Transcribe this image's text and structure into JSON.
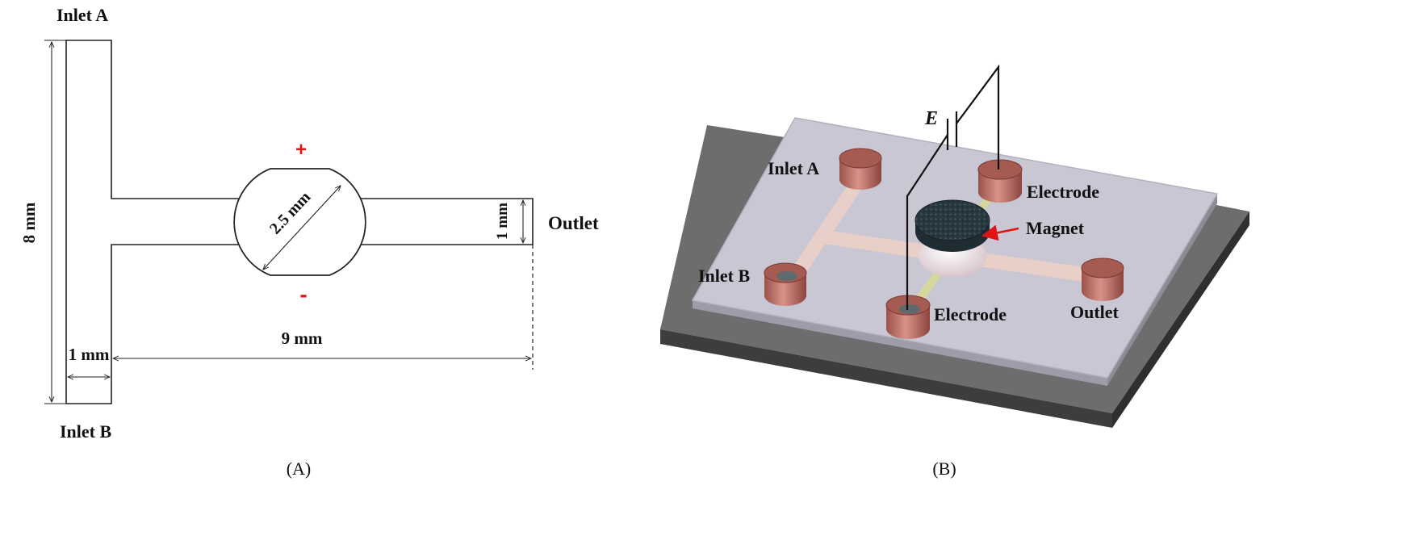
{
  "panel_a": {
    "inlet_a": "Inlet A",
    "inlet_b": "Inlet B",
    "outlet": "Outlet",
    "dim_height": "8 mm",
    "dim_width_inlet": "1 mm",
    "dim_length": "9 mm",
    "dim_outlet_width": "1 mm",
    "dim_chamber": "2.5 mm",
    "plus_sign": "+",
    "minus_sign": "-",
    "caption": "(A)"
  },
  "panel_b": {
    "field_label": "E",
    "inlet_a": "Inlet A",
    "inlet_b": "Inlet B",
    "electrode_top": "Electrode",
    "electrode_bottom": "Electrode",
    "magnet": "Magnet",
    "outlet": "Outlet",
    "caption": "(B)"
  },
  "colors": {
    "outline": "#222222",
    "polarity": "#e01414",
    "chip_top": "#c9c7d3",
    "chip_base": "#4a4a4a",
    "channel": "#e8cfc8",
    "port": "#b06a62",
    "electrode_strip": "#d6d79a",
    "magnet": "#2b3a40"
  }
}
